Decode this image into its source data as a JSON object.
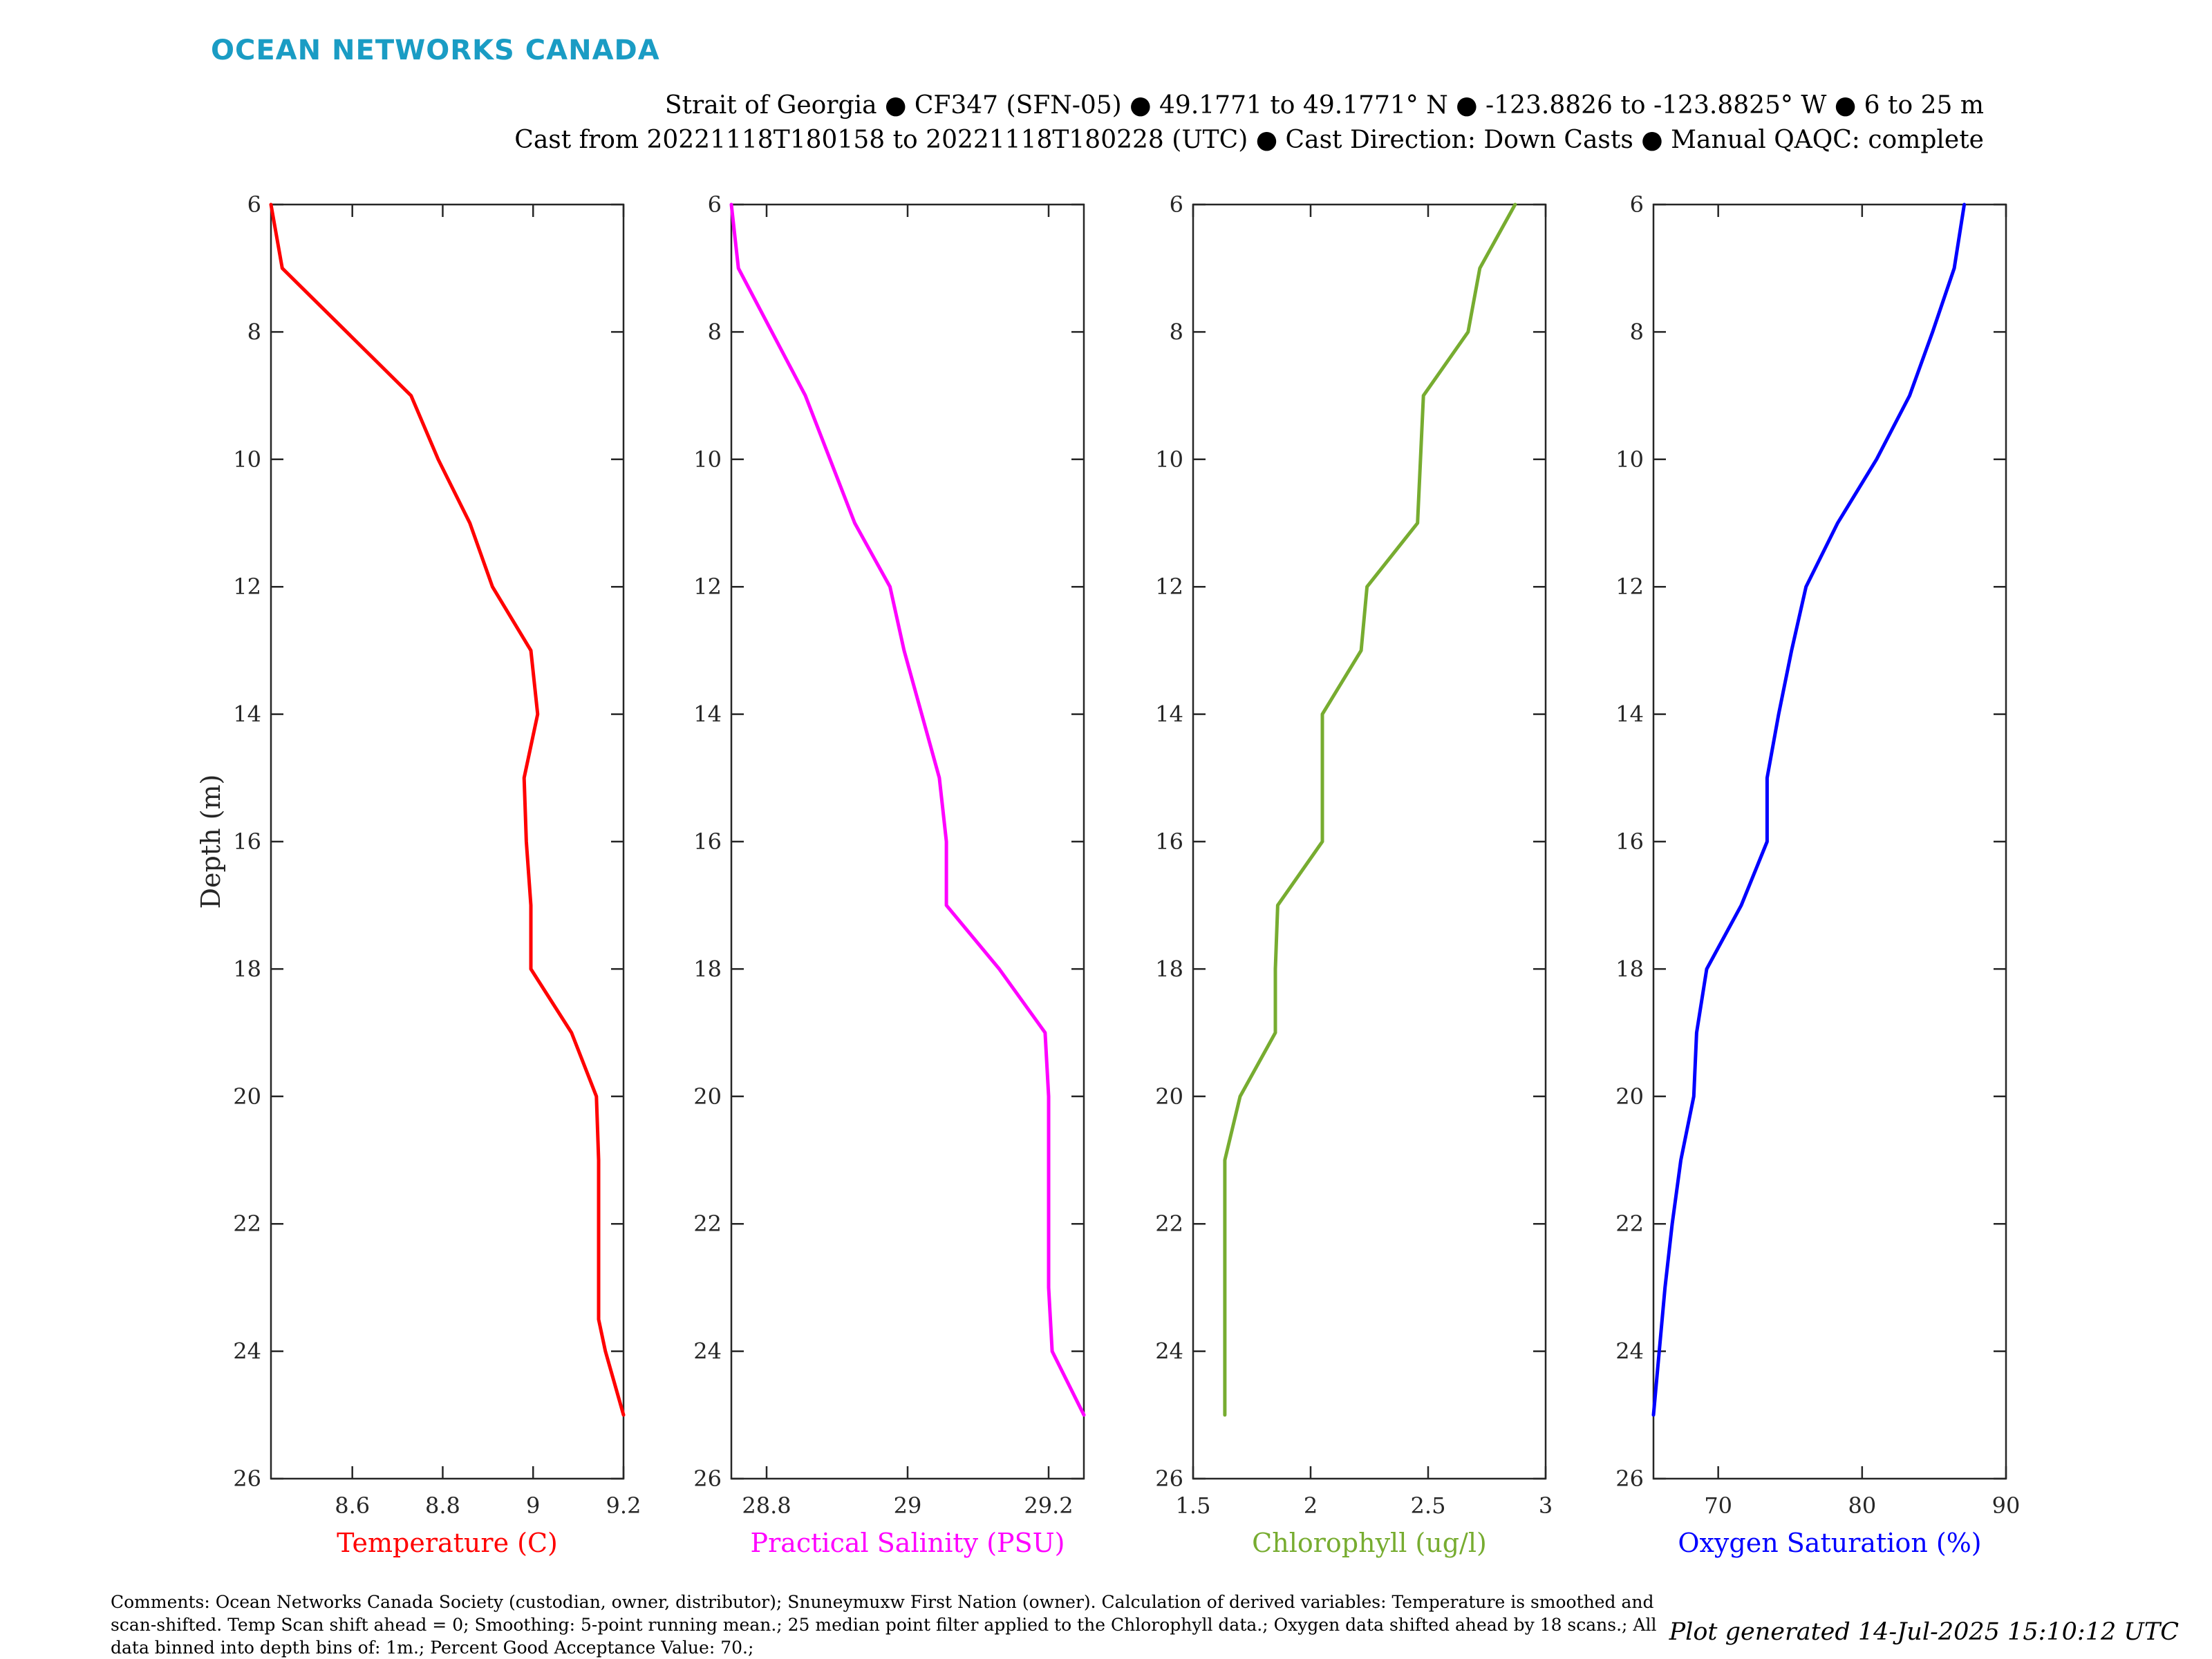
{
  "header": {
    "logo_text": "OCEAN NETWORKS CANADA",
    "logo_color": "#1a9cc4",
    "line1": "Strait of Georgia ● CF347 (SFN-05) ● 49.1771 to 49.1771° N ● -123.8826 to -123.8825° W ● 6 to 25 m",
    "line2": "Cast from 20221118T180158 to 20221118T180228 (UTC) ● Cast Direction: Down Casts ● Manual QAQC: complete"
  },
  "footer": {
    "comments": "Comments: Ocean Networks Canada Society (custodian, owner, distributor); Snuneymuxw First Nation (owner). Calculation of derived variables: Temperature is smoothed and scan-shifted. Temp Scan shift ahead = 0; Smoothing: 5-point running mean.; 25 median point filter applied to the Chlorophyll data.; Oxygen data shifted ahead by 18 scans.; All data binned into depth bins of: 1m.; Percent Good Acceptance Value: 70.;",
    "generated": "Plot generated 14-Jul-2025 15:10:12 UTC"
  },
  "chart_data": [
    {
      "type": "line",
      "xlabel": "Temperature (C)",
      "ylabel": "Depth (m)",
      "color": "#ff0000",
      "xlim": [
        8.42,
        9.2
      ],
      "ylim": [
        6,
        26
      ],
      "y_reversed": true,
      "xticks": [
        8.6,
        8.8,
        9,
        9.2
      ],
      "xtick_labels": [
        "8.6",
        "8.8",
        "9",
        "9.2"
      ],
      "yticks": [
        6,
        8,
        10,
        12,
        14,
        16,
        18,
        20,
        22,
        24,
        26
      ],
      "series": [
        {
          "x": [
            8.42,
            8.445,
            8.73,
            8.79,
            8.86,
            8.91,
            8.995,
            9.01,
            8.98,
            8.985,
            8.995,
            8.995,
            9.085,
            9.14,
            9.145,
            9.145,
            9.145,
            9.145,
            9.16,
            9.2
          ],
          "y": [
            6,
            7,
            9,
            10,
            11,
            12,
            13,
            14,
            15,
            16,
            17,
            18,
            19,
            20,
            21,
            22,
            23,
            23.5,
            24,
            25
          ]
        }
      ]
    },
    {
      "type": "line",
      "xlabel": "Practical Salinity (PSU)",
      "ylabel": "",
      "color": "#ff00ff",
      "xlim": [
        28.75,
        29.25
      ],
      "ylim": [
        6,
        26
      ],
      "y_reversed": true,
      "xticks": [
        28.8,
        29,
        29.2
      ],
      "xtick_labels": [
        "28.8",
        "29",
        "29.2"
      ],
      "yticks": [
        6,
        8,
        10,
        12,
        14,
        16,
        18,
        20,
        22,
        24,
        26
      ],
      "series": [
        {
          "x": [
            28.75,
            28.76,
            28.855,
            28.89,
            28.925,
            28.975,
            28.995,
            29.02,
            29.045,
            29.055,
            29.055,
            29.13,
            29.195,
            29.2,
            29.2,
            29.2,
            29.205,
            29.25
          ],
          "y": [
            6,
            7,
            9,
            10,
            11,
            12,
            13,
            14,
            15,
            16,
            17,
            18,
            19,
            20,
            21,
            23,
            24,
            25
          ]
        }
      ]
    },
    {
      "type": "line",
      "xlabel": "Chlorophyll (ug/l)",
      "ylabel": "",
      "color": "#77ac30",
      "xlim": [
        1.5,
        3
      ],
      "ylim": [
        6,
        26
      ],
      "y_reversed": true,
      "xticks": [
        1.5,
        2,
        2.5,
        3
      ],
      "xtick_labels": [
        "1.5",
        "2",
        "2.5",
        "3"
      ],
      "yticks": [
        6,
        8,
        10,
        12,
        14,
        16,
        18,
        20,
        22,
        24,
        26
      ],
      "series": [
        {
          "x": [
            2.87,
            2.72,
            2.67,
            2.48,
            2.455,
            2.24,
            2.215,
            2.05,
            2.05,
            1.86,
            1.85,
            1.85,
            1.7,
            1.635,
            1.635,
            1.635
          ],
          "y": [
            6,
            7,
            8,
            9,
            11,
            12,
            13,
            14,
            16,
            17,
            18,
            19,
            20,
            21,
            23,
            25
          ]
        }
      ]
    },
    {
      "type": "line",
      "xlabel": "Oxygen Saturation (%)",
      "ylabel": "",
      "color": "#0000ff",
      "xlim": [
        65.5,
        90
      ],
      "ylim": [
        6,
        26
      ],
      "y_reversed": true,
      "xticks": [
        70,
        80,
        90
      ],
      "xtick_labels": [
        "70",
        "80",
        "90"
      ],
      "yticks": [
        6,
        8,
        10,
        12,
        14,
        16,
        18,
        20,
        22,
        24,
        26
      ],
      "series": [
        {
          "x": [
            87.1,
            86.4,
            84.9,
            83.3,
            81.0,
            78.3,
            76.1,
            75.1,
            74.2,
            73.4,
            73.4,
            71.6,
            69.2,
            68.5,
            68.3,
            67.4,
            66.8,
            66.3,
            65.5
          ],
          "y": [
            6,
            7,
            8,
            9,
            10,
            11,
            12,
            13,
            14,
            15,
            16,
            17,
            18,
            19,
            20,
            21,
            22,
            23,
            25
          ]
        }
      ]
    }
  ]
}
